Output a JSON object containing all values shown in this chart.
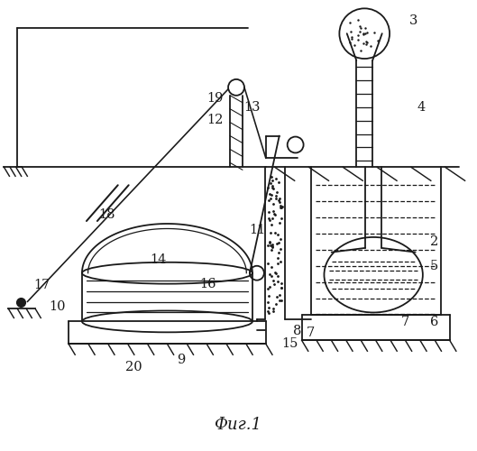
{
  "bg_color": "#ffffff",
  "line_color": "#1a1a1a",
  "fig_width": 5.29,
  "fig_height": 5.0,
  "dpi": 100,
  "caption": "Фиг.1"
}
